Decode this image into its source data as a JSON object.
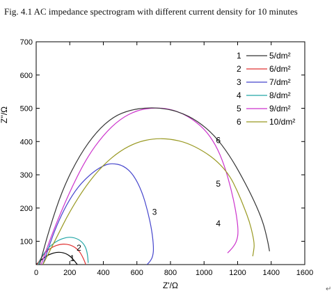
{
  "caption": "Fig. 4.1 AC impedance spectrogram with different current density for 10 minutes",
  "corner_mark": "↵",
  "chart_data": {
    "type": "line",
    "title": "",
    "xlabel": "Z'/Ω",
    "ylabel": "Z''/Ω",
    "xlim": [
      0,
      1600
    ],
    "ylim": [
      30,
      700
    ],
    "x_ticks": [
      0,
      200,
      400,
      600,
      800,
      1000,
      1200,
      1400,
      1600
    ],
    "y_ticks": [
      100,
      200,
      300,
      400,
      500,
      600,
      700
    ],
    "grid": false,
    "legend_position": "top-right",
    "legend": [
      {
        "num": "1",
        "label": "5/dm²"
      },
      {
        "num": "2",
        "label": "6/dm²"
      },
      {
        "num": "3",
        "label": "7/dm²"
      },
      {
        "num": "4",
        "label": "8/dm²"
      },
      {
        "num": "5",
        "label": "9/dm²"
      },
      {
        "num": "6",
        "label": "10/dm²"
      }
    ],
    "series": [
      {
        "name": "1",
        "color": "#000000",
        "label_at": [
          190,
          42
        ],
        "x": [
          0,
          30,
          60,
          100,
          140,
          180,
          210,
          230,
          245,
          250
        ],
        "y": [
          30,
          44,
          56,
          65,
          68,
          63,
          52,
          40,
          30,
          28
        ]
      },
      {
        "name": "2",
        "color": "#e03030",
        "label_at": [
          255,
          72
        ],
        "x": [
          5,
          30,
          60,
          100,
          140,
          180,
          220,
          255,
          275,
          290,
          295
        ],
        "y": [
          30,
          50,
          70,
          84,
          91,
          92,
          86,
          72,
          55,
          38,
          30
        ]
      },
      {
        "name": "3",
        "color": "#4444cc",
        "label_at": [
          700,
          180
        ],
        "x": [
          40,
          80,
          120,
          180,
          250,
          330,
          400,
          450,
          520,
          580,
          630,
          665,
          690,
          700,
          695,
          680,
          660
        ],
        "y": [
          30,
          90,
          145,
          210,
          265,
          305,
          328,
          335,
          328,
          300,
          250,
          190,
          130,
          80,
          55,
          40,
          30
        ]
      },
      {
        "name": "4",
        "color": "#22a6a6",
        "label_at": [
          0,
          0
        ],
        "x": [
          10,
          40,
          80,
          130,
          180,
          220,
          260,
          290,
          305,
          310
        ],
        "y": [
          30,
          60,
          85,
          103,
          112,
          112,
          104,
          88,
          65,
          35
        ]
      },
      {
        "name": "5",
        "color": "#cc33cc",
        "label_at": [
          1050,
          310
        ],
        "x": [
          30,
          100,
          200,
          300,
          400,
          500,
          600,
          700,
          800,
          900,
          1000,
          1070,
          1120,
          1160,
          1190,
          1205,
          1195,
          1170,
          1140
        ],
        "y": [
          30,
          130,
          250,
          350,
          420,
          468,
          494,
          502,
          498,
          478,
          440,
          390,
          330,
          260,
          190,
          130,
          100,
          80,
          65
        ]
      },
      {
        "name": "6",
        "color": "#999922",
        "label_at": [
          1050,
          400
        ],
        "x": [
          40,
          120,
          200,
          300,
          400,
          500,
          600,
          700,
          800,
          900,
          1000,
          1080,
          1150,
          1200,
          1240,
          1270,
          1290,
          1300,
          1295,
          1290
        ],
        "y": [
          30,
          110,
          190,
          270,
          330,
          372,
          398,
          409,
          408,
          396,
          370,
          340,
          300,
          250,
          200,
          160,
          120,
          90,
          70,
          55
        ]
      },
      {
        "name": "",
        "color": "#333333",
        "label_at": [
          1020,
          195
        ],
        "x": [
          20,
          80,
          160,
          260,
          360,
          460,
          560,
          660,
          760,
          860,
          960,
          1060,
          1150,
          1230,
          1300,
          1350,
          1375,
          1385,
          1390
        ],
        "y": [
          30,
          140,
          260,
          360,
          430,
          475,
          495,
          502,
          500,
          488,
          462,
          420,
          360,
          290,
          220,
          160,
          110,
          85,
          70
        ]
      }
    ],
    "curve_labels": [
      {
        "text": "1",
        "x": 215,
        "y": 40
      },
      {
        "text": "2",
        "x": 255,
        "y": 72
      },
      {
        "text": "3",
        "x": 705,
        "y": 180
      },
      {
        "text": "4",
        "x": 1085,
        "y": 145
      },
      {
        "text": "5",
        "x": 1085,
        "y": 265
      },
      {
        "text": "6",
        "x": 1085,
        "y": 395
      }
    ]
  }
}
